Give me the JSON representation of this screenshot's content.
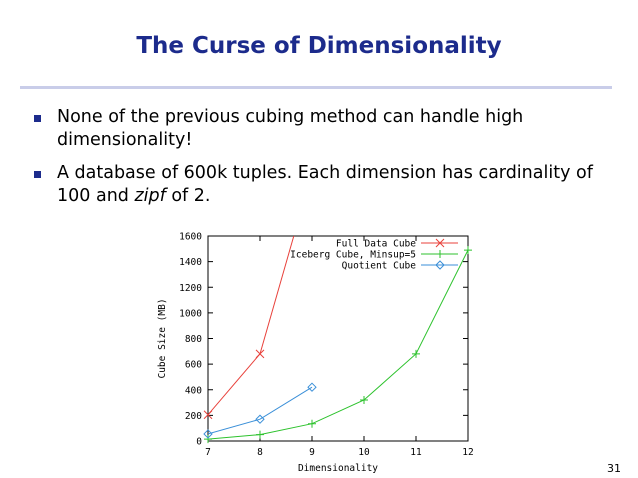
{
  "slide": {
    "title": "The Curse of Dimensionality",
    "bullets": [
      {
        "text": "None of the previous cubing method can handle high dimensionality!"
      },
      {
        "text_before": "A database of 600k tuples.  Each dimension has cardinality of 100 and ",
        "text_italic": "zipf",
        "text_after": " of 2."
      }
    ],
    "page_number": "31"
  },
  "colors": {
    "title": "#1c2b8c",
    "rule": "#c9cde9"
  },
  "chart_data": {
    "type": "line",
    "title": "",
    "xlabel": "Dimensionality",
    "ylabel": "Cube Size (MB)",
    "xlim": [
      7,
      12
    ],
    "ylim": [
      0,
      1600
    ],
    "x_ticks": [
      7,
      8,
      9,
      10,
      11,
      12
    ],
    "y_ticks": [
      0,
      200,
      400,
      600,
      800,
      1000,
      1200,
      1400,
      1600
    ],
    "grid": false,
    "legend_position": "top-right",
    "series": [
      {
        "name": "Full Data Cube",
        "color": "#e8413b",
        "marker": "x",
        "points": [
          [
            7,
            205
          ],
          [
            8,
            680
          ],
          [
            8.65,
            1600
          ]
        ]
      },
      {
        "name": "Iceberg Cube, Minsup=5",
        "color": "#2cc22c",
        "marker": "+",
        "points": [
          [
            7,
            15
          ],
          [
            8,
            50
          ],
          [
            9,
            135
          ],
          [
            10,
            320
          ],
          [
            11,
            680
          ],
          [
            12,
            1490
          ]
        ]
      },
      {
        "name": "Quotient Cube",
        "color": "#3a8fd8",
        "marker": "diamond",
        "points": [
          [
            7,
            55
          ],
          [
            8,
            170
          ],
          [
            9,
            420
          ]
        ]
      }
    ]
  }
}
